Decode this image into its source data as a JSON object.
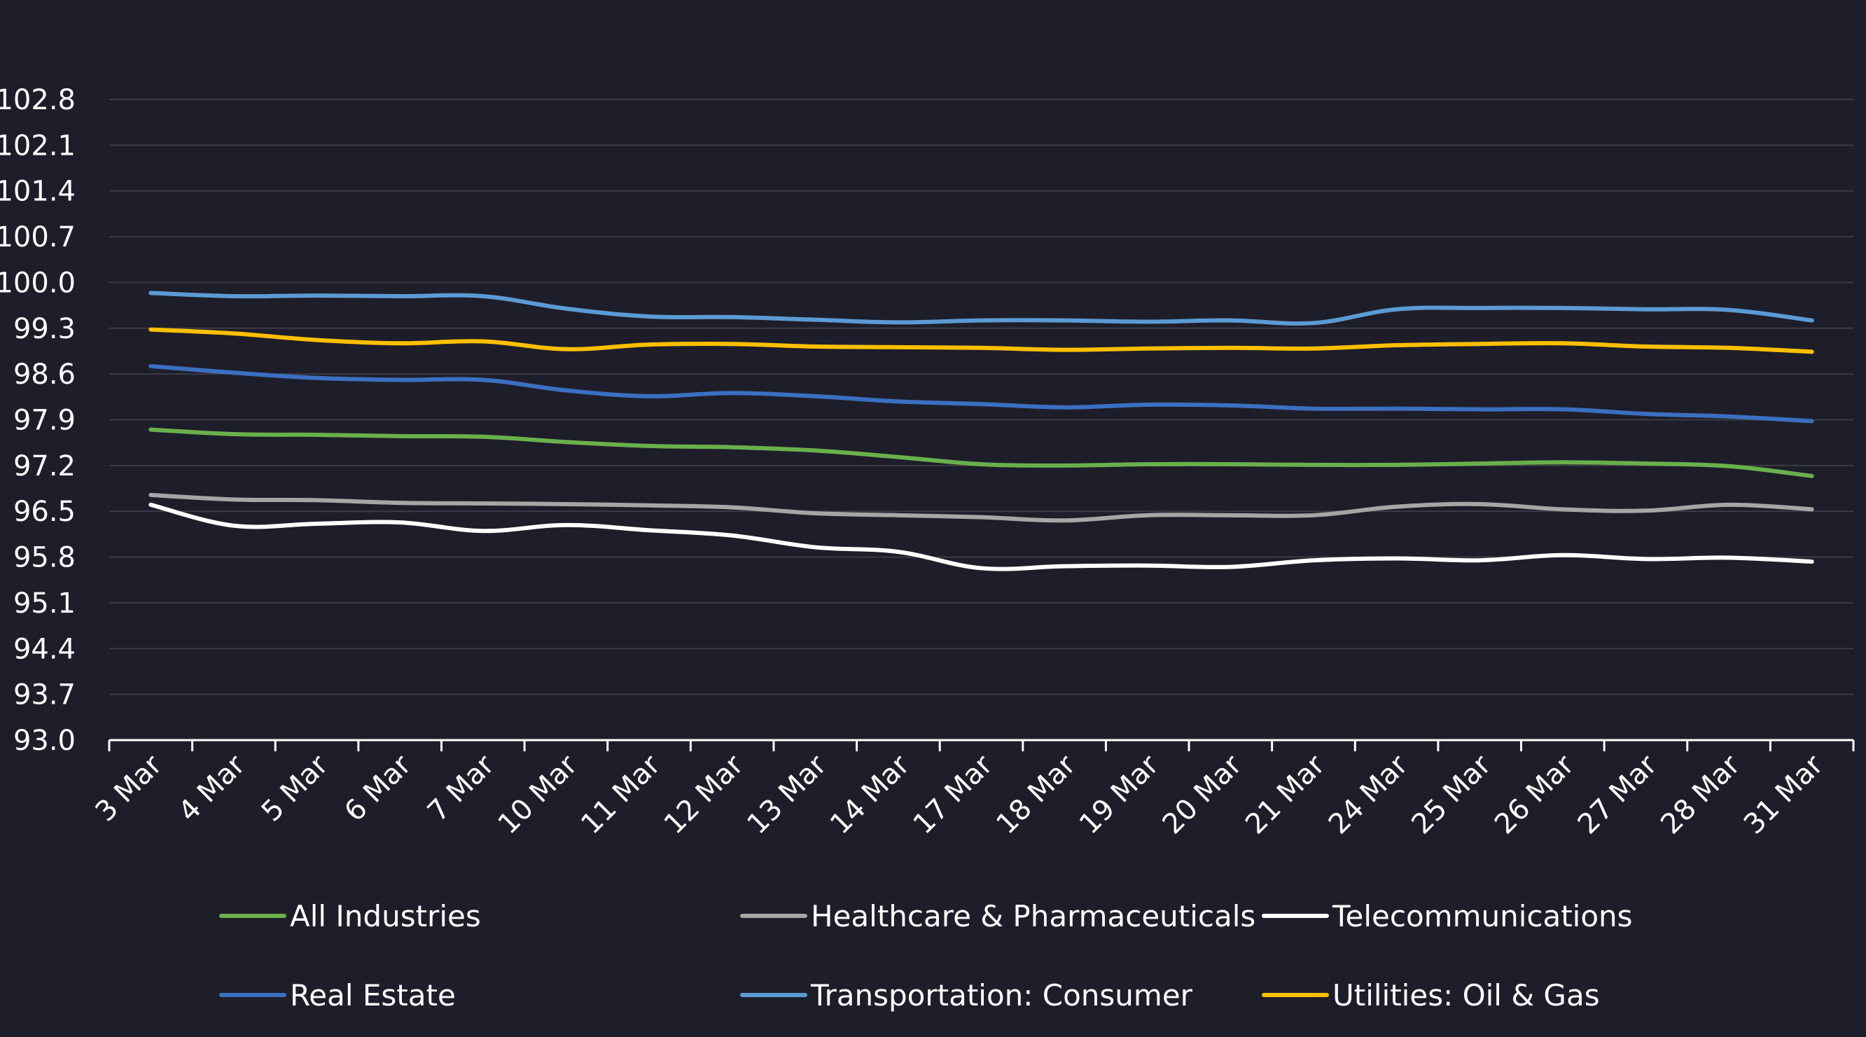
{
  "chart_data": {
    "type": "line",
    "title": "",
    "xlabel": "",
    "ylabel": "",
    "x": [
      "3 Mar",
      "4 Mar",
      "5 Mar",
      "6 Mar",
      "7 Mar",
      "10 Mar",
      "11 Mar",
      "12 Mar",
      "13 Mar",
      "14 Mar",
      "17 Mar",
      "18 Mar",
      "19 Mar",
      "20 Mar",
      "21 Mar",
      "24 Mar",
      "25 Mar",
      "26 Mar",
      "27 Mar",
      "28 Mar",
      "31 Mar"
    ],
    "ylim": [
      93.0,
      102.8
    ],
    "yticks": [
      "93.0",
      "93.7",
      "94.4",
      "95.1",
      "95.8",
      "96.5",
      "97.2",
      "97.9",
      "98.6",
      "99.3",
      "100.0",
      "100.7",
      "101.4",
      "102.1",
      "102.8"
    ],
    "grid": true,
    "legend_position": "bottom",
    "series": [
      {
        "name": "All Industries",
        "color": "#6ab04c",
        "values": [
          97.75,
          97.68,
          97.67,
          97.65,
          97.64,
          97.56,
          97.5,
          97.48,
          97.43,
          97.33,
          97.22,
          97.2,
          97.22,
          97.22,
          97.21,
          97.21,
          97.23,
          97.25,
          97.23,
          97.19,
          97.04
        ]
      },
      {
        "name": "Healthcare & Pharmaceuticals",
        "color": "#a6a6a6",
        "values": [
          96.75,
          96.68,
          96.67,
          96.63,
          96.62,
          96.61,
          96.59,
          96.56,
          96.47,
          96.44,
          96.41,
          96.36,
          96.44,
          96.44,
          96.44,
          96.57,
          96.61,
          96.53,
          96.51,
          96.6,
          96.53
        ]
      },
      {
        "name": "Telecommunications",
        "color": "#ffffff",
        "values": [
          96.6,
          96.28,
          96.31,
          96.33,
          96.2,
          96.29,
          96.21,
          96.13,
          95.95,
          95.88,
          95.63,
          95.66,
          95.67,
          95.65,
          95.75,
          95.78,
          95.75,
          95.83,
          95.77,
          95.79,
          95.73
        ]
      },
      {
        "name": "Real Estate",
        "color": "#3b6fc1",
        "values": [
          98.72,
          98.62,
          98.54,
          98.51,
          98.51,
          98.35,
          98.26,
          98.31,
          98.26,
          98.18,
          98.14,
          98.09,
          98.13,
          98.12,
          98.07,
          98.07,
          98.06,
          98.06,
          97.99,
          97.95,
          97.88
        ]
      },
      {
        "name": "Transportation: Consumer",
        "color": "#5b9bd5",
        "values": [
          99.84,
          99.79,
          99.8,
          99.79,
          99.79,
          99.6,
          99.48,
          99.47,
          99.43,
          99.39,
          99.42,
          99.42,
          99.4,
          99.42,
          99.38,
          99.59,
          99.61,
          99.61,
          99.59,
          99.58,
          99.42
        ]
      },
      {
        "name": "Utilities: Oil & Gas",
        "color": "#ffc000",
        "values": [
          99.28,
          99.22,
          99.12,
          99.07,
          99.1,
          98.98,
          99.05,
          99.06,
          99.02,
          99.01,
          99.0,
          98.97,
          98.99,
          99.0,
          98.99,
          99.04,
          99.06,
          99.07,
          99.02,
          99.0,
          98.94
        ]
      }
    ]
  }
}
